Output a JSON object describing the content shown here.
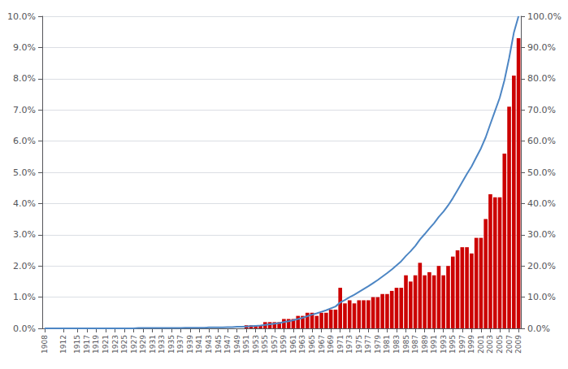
{
  "chart_data": {
    "type": "bar",
    "x": [
      1908,
      1909,
      1910,
      1911,
      1912,
      1913,
      1914,
      1915,
      1916,
      1917,
      1918,
      1919,
      1920,
      1921,
      1922,
      1923,
      1924,
      1925,
      1926,
      1927,
      1928,
      1929,
      1930,
      1931,
      1932,
      1933,
      1934,
      1935,
      1936,
      1937,
      1938,
      1939,
      1940,
      1941,
      1942,
      1943,
      1944,
      1945,
      1946,
      1947,
      1948,
      1949,
      1950,
      1951,
      1952,
      1953,
      1954,
      1955,
      1956,
      1957,
      1958,
      1959,
      1960,
      1961,
      1962,
      1963,
      1964,
      1965,
      1966,
      1967,
      1968,
      1969,
      1970,
      1971,
      1972,
      1973,
      1974,
      1975,
      1976,
      1977,
      1978,
      1979,
      1980,
      1981,
      1982,
      1983,
      1984,
      1985,
      1986,
      1987,
      1988,
      1989,
      1990,
      1991,
      1992,
      1993,
      1994,
      1995,
      1996,
      1997,
      1998,
      1999,
      2000,
      2001,
      2002,
      2003,
      2004,
      2005,
      2006,
      2007,
      2008,
      2009
    ],
    "series": [
      {
        "type": "bar",
        "color": "#cc0000",
        "values": [
          0.0,
          0.0,
          0.0,
          0.0,
          0.0,
          0.0,
          0.0,
          0.0,
          0.0,
          0.0,
          0.0,
          0.0,
          0.0,
          0.0,
          0.0,
          0.0,
          0.0,
          0.0,
          0.0,
          0.0,
          0.0,
          0.0,
          0.0,
          0.0,
          0.0,
          0.0,
          0.0,
          0.0,
          0.0,
          0.0,
          0.0,
          0.0,
          0.0,
          0.0,
          0.0,
          0.0,
          0.0,
          0.0,
          0.0,
          0.0,
          0.0,
          0.0,
          0.0,
          0.001,
          0.001,
          0.001,
          0.001,
          0.002,
          0.002,
          0.002,
          0.002,
          0.003,
          0.003,
          0.003,
          0.004,
          0.004,
          0.005,
          0.005,
          0.004,
          0.005,
          0.005,
          0.006,
          0.006,
          0.013,
          0.008,
          0.009,
          0.008,
          0.009,
          0.009,
          0.009,
          0.01,
          0.01,
          0.011,
          0.011,
          0.012,
          0.013,
          0.013,
          0.017,
          0.015,
          0.017,
          0.021,
          0.017,
          0.018,
          0.017,
          0.02,
          0.017,
          0.02,
          0.023,
          0.025,
          0.026,
          0.026,
          0.024,
          0.029,
          0.029,
          0.035,
          0.043,
          0.042,
          0.042,
          0.056,
          0.071,
          0.081,
          0.093
        ]
      },
      {
        "type": "line",
        "axis": "y2",
        "color": "#4d86c4",
        "values": [
          0.0,
          0.0,
          0.0,
          0.0,
          0.0,
          0.0,
          0.0,
          0.0,
          0.0,
          0.0,
          0.0,
          0.0,
          0.0,
          0.0,
          0.0,
          0.0,
          0.0,
          0.0,
          0.0,
          0.0,
          0.001,
          0.001,
          0.001,
          0.001,
          0.001,
          0.001,
          0.001,
          0.001,
          0.001,
          0.001,
          0.002,
          0.002,
          0.002,
          0.002,
          0.002,
          0.003,
          0.003,
          0.003,
          0.003,
          0.004,
          0.004,
          0.005,
          0.005,
          0.006,
          0.007,
          0.008,
          0.009,
          0.011,
          0.013,
          0.015,
          0.017,
          0.02,
          0.023,
          0.026,
          0.03,
          0.034,
          0.039,
          0.044,
          0.048,
          0.053,
          0.058,
          0.064,
          0.07,
          0.083,
          0.091,
          0.1,
          0.108,
          0.117,
          0.126,
          0.135,
          0.145,
          0.155,
          0.166,
          0.177,
          0.189,
          0.202,
          0.215,
          0.232,
          0.247,
          0.264,
          0.285,
          0.302,
          0.32,
          0.337,
          0.357,
          0.374,
          0.394,
          0.417,
          0.443,
          0.469,
          0.495,
          0.519,
          0.548,
          0.577,
          0.612,
          0.655,
          0.697,
          0.739,
          0.795,
          0.866,
          0.947,
          1.0
        ]
      }
    ],
    "xlim": [
      1907.5,
      2009.5
    ],
    "xticks": [
      1908,
      1912,
      1915,
      1917,
      1919,
      1921,
      1923,
      1925,
      1927,
      1929,
      1931,
      1933,
      1935,
      1937,
      1939,
      1941,
      1943,
      1945,
      1947,
      1949,
      1951,
      1953,
      1955,
      1957,
      1959,
      1961,
      1963,
      1965,
      1967,
      1969,
      1971,
      1973,
      1975,
      1977,
      1979,
      1981,
      1983,
      1985,
      1987,
      1989,
      1991,
      1993,
      1995,
      1997,
      1999,
      2001,
      2003,
      2005,
      2007,
      2009
    ],
    "ylim": [
      0.0,
      0.1
    ],
    "yticks": [
      {
        "value": 0.0,
        "label": "0.0%"
      },
      {
        "value": 0.01,
        "label": "1.0%"
      },
      {
        "value": 0.02,
        "label": "2.0%"
      },
      {
        "value": 0.03,
        "label": "3.0%"
      },
      {
        "value": 0.04,
        "label": "4.0%"
      },
      {
        "value": 0.05,
        "label": "5.0%"
      },
      {
        "value": 0.06,
        "label": "6.0%"
      },
      {
        "value": 0.07,
        "label": "7.0%"
      },
      {
        "value": 0.08,
        "label": "8.0%"
      },
      {
        "value": 0.09,
        "label": "9.0%"
      },
      {
        "value": 0.1,
        "label": "10.0%"
      }
    ],
    "y2lim": [
      0.0,
      1.0
    ],
    "y2ticks": [
      {
        "value": 0.0,
        "label": "0.0%"
      },
      {
        "value": 0.1,
        "label": "10.0%"
      },
      {
        "value": 0.2,
        "label": "20.0%"
      },
      {
        "value": 0.3,
        "label": "30.0%"
      },
      {
        "value": 0.4,
        "label": "40.0%"
      },
      {
        "value": 0.5,
        "label": "50.0%"
      },
      {
        "value": 0.6,
        "label": "60.0%"
      },
      {
        "value": 0.7,
        "label": "70.0%"
      },
      {
        "value": 0.8,
        "label": "80.0%"
      },
      {
        "value": 0.9,
        "label": "90.0%"
      },
      {
        "value": 1.0,
        "label": "100.0%"
      }
    ],
    "grid": true
  }
}
